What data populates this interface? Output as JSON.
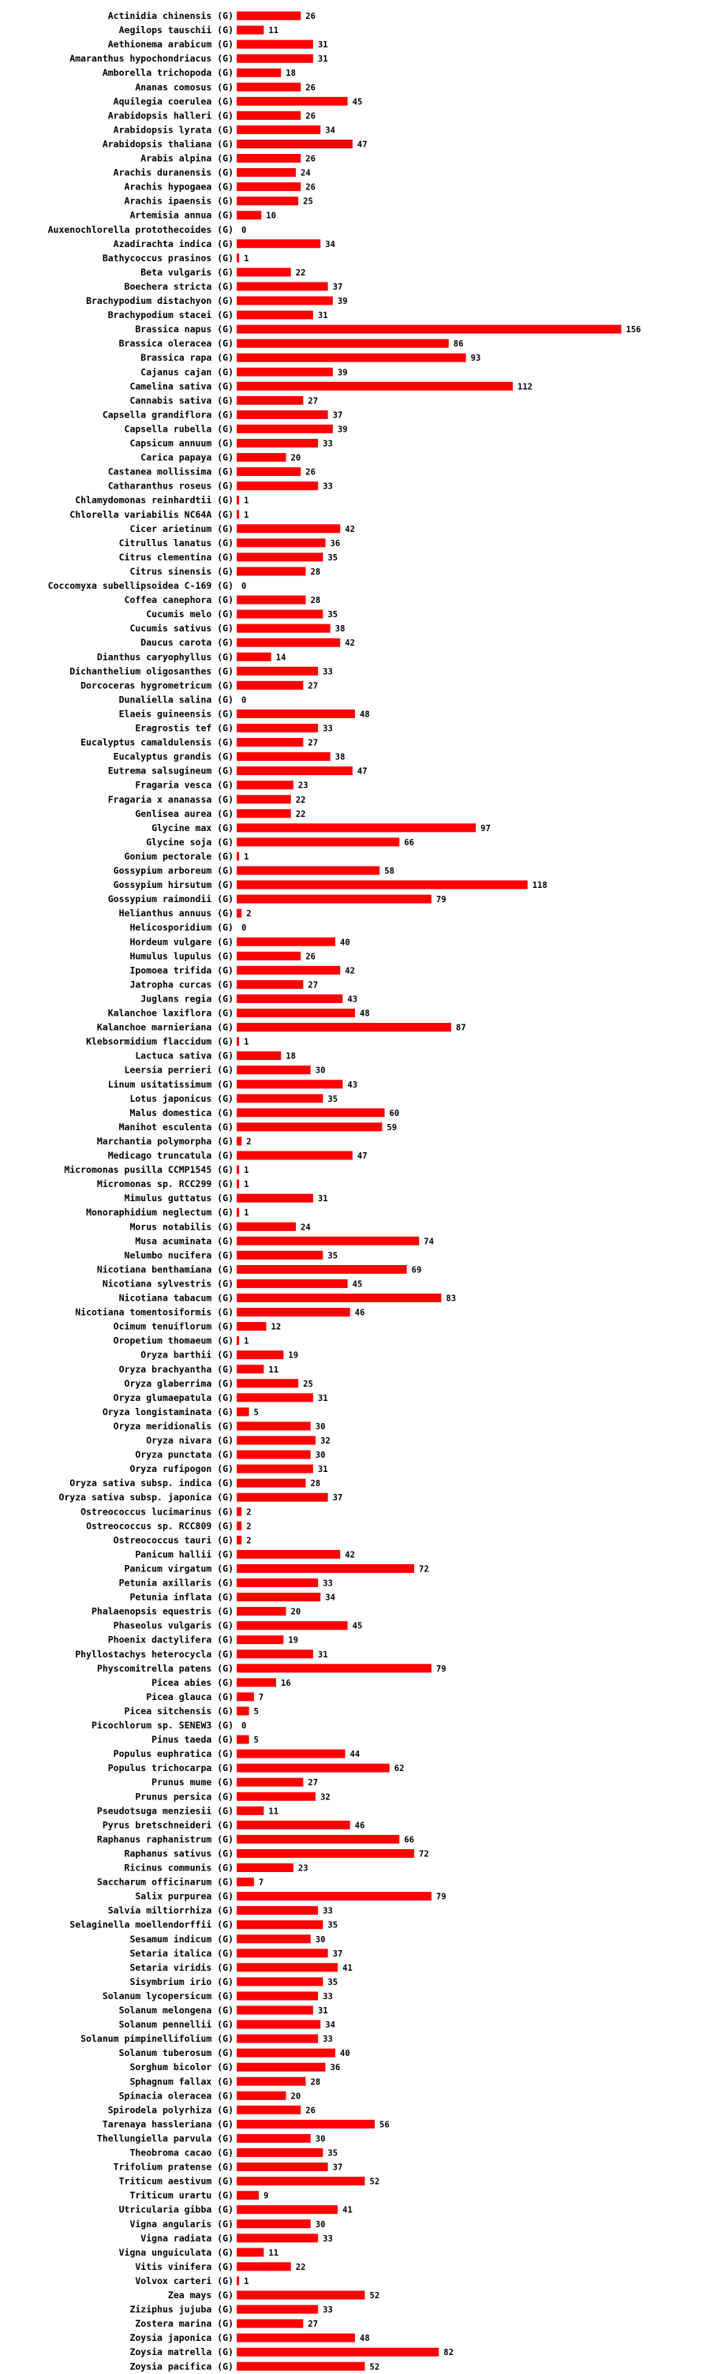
{
  "chart_data": {
    "type": "bar",
    "orientation": "horizontal",
    "bar_color": "#ff0000",
    "categories": [
      "Actinidia chinensis (G)",
      "Aegilops tauschii (G)",
      "Aethionema arabicum (G)",
      "Amaranthus hypochondriacus (G)",
      "Amborella trichopoda (G)",
      "Ananas comosus (G)",
      "Aquilegia coerulea (G)",
      "Arabidopsis halleri (G)",
      "Arabidopsis lyrata (G)",
      "Arabidopsis thaliana (G)",
      "Arabis alpina (G)",
      "Arachis duranensis (G)",
      "Arachis hypogaea (G)",
      "Arachis ipaensis (G)",
      "Artemisia annua (G)",
      "Auxenochlorella protothecoides (G)",
      "Azadirachta indica (G)",
      "Bathycoccus prasinos (G)",
      "Beta vulgaris (G)",
      "Boechera stricta (G)",
      "Brachypodium distachyon (G)",
      "Brachypodium stacei (G)",
      "Brassica napus (G)",
      "Brassica oleracea (G)",
      "Brassica rapa (G)",
      "Cajanus cajan (G)",
      "Camelina sativa (G)",
      "Cannabis sativa (G)",
      "Capsella grandiflora (G)",
      "Capsella rubella (G)",
      "Capsicum annuum (G)",
      "Carica papaya (G)",
      "Castanea mollissima (G)",
      "Catharanthus roseus (G)",
      "Chlamydomonas reinhardtii (G)",
      "Chlorella variabilis NC64A (G)",
      "Cicer arietinum (G)",
      "Citrullus lanatus (G)",
      "Citrus clementina (G)",
      "Citrus sinensis (G)",
      "Coccomyxa subellipsoidea C-169 (G)",
      "Coffea canephora (G)",
      "Cucumis melo (G)",
      "Cucumis sativus (G)",
      "Daucus carota (G)",
      "Dianthus caryophyllus (G)",
      "Dichanthelium oligosanthes (G)",
      "Dorcoceras hygrometricum (G)",
      "Dunaliella salina (G)",
      "Elaeis guineensis (G)",
      "Eragrostis tef (G)",
      "Eucalyptus camaldulensis (G)",
      "Eucalyptus grandis (G)",
      "Eutrema salsugineum (G)",
      "Fragaria vesca (G)",
      "Fragaria x ananassa (G)",
      "Genlisea aurea (G)",
      "Glycine max (G)",
      "Glycine soja (G)",
      "Gonium pectorale (G)",
      "Gossypium arboreum (G)",
      "Gossypium hirsutum (G)",
      "Gossypium raimondii (G)",
      "Helianthus annuus (G)",
      "Helicosporidium (G)",
      "Hordeum vulgare (G)",
      "Humulus lupulus (G)",
      "Ipomoea trifida (G)",
      "Jatropha curcas (G)",
      "Juglans regia (G)",
      "Kalanchoe laxiflora (G)",
      "Kalanchoe marnieriana (G)",
      "Klebsormidium flaccidum (G)",
      "Lactuca sativa (G)",
      "Leersia perrieri (G)",
      "Linum usitatissimum (G)",
      "Lotus japonicus (G)",
      "Malus domestica (G)",
      "Manihot esculenta (G)",
      "Marchantia polymorpha (G)",
      "Medicago truncatula (G)",
      "Micromonas pusilla CCMP1545 (G)",
      "Micromonas sp. RCC299 (G)",
      "Mimulus guttatus (G)",
      "Monoraphidium neglectum (G)",
      "Morus notabilis (G)",
      "Musa acuminata (G)",
      "Nelumbo nucifera (G)",
      "Nicotiana benthamiana (G)",
      "Nicotiana sylvestris (G)",
      "Nicotiana tabacum (G)",
      "Nicotiana tomentosiformis (G)",
      "Ocimum tenuiflorum (G)",
      "Oropetium thomaeum (G)",
      "Oryza barthii (G)",
      "Oryza brachyantha (G)",
      "Oryza glaberrima (G)",
      "Oryza glumaepatula (G)",
      "Oryza longistaminata (G)",
      "Oryza meridionalis (G)",
      "Oryza nivara (G)",
      "Oryza punctata (G)",
      "Oryza rufipogon (G)",
      "Oryza sativa subsp. indica (G)",
      "Oryza sativa subsp. japonica (G)",
      "Ostreococcus lucimarinus (G)",
      "Ostreococcus sp. RCC809 (G)",
      "Ostreococcus tauri (G)",
      "Panicum hallii (G)",
      "Panicum virgatum (G)",
      "Petunia axillaris (G)",
      "Petunia inflata (G)",
      "Phalaenopsis equestris (G)",
      "Phaseolus vulgaris (G)",
      "Phoenix dactylifera (G)",
      "Phyllostachys heterocycla (G)",
      "Physcomitrella patens (G)",
      "Picea abies (G)",
      "Picea glauca (G)",
      "Picea sitchensis (G)",
      "Picochlorum sp. SENEW3 (G)",
      "Pinus taeda (G)",
      "Populus euphratica (G)",
      "Populus trichocarpa (G)",
      "Prunus mume (G)",
      "Prunus persica (G)",
      "Pseudotsuga menziesii (G)",
      "Pyrus bretschneideri (G)",
      "Raphanus raphanistrum (G)",
      "Raphanus sativus (G)",
      "Ricinus communis (G)",
      "Saccharum officinarum (G)",
      "Salix purpurea (G)",
      "Salvia miltiorrhiza (G)",
      "Selaginella moellendorffii (G)",
      "Sesamum indicum (G)",
      "Setaria italica (G)",
      "Setaria viridis (G)",
      "Sisymbrium irio (G)",
      "Solanum lycopersicum (G)",
      "Solanum melongena (G)",
      "Solanum pennellii (G)",
      "Solanum pimpinellifolium (G)",
      "Solanum tuberosum (G)",
      "Sorghum bicolor (G)",
      "Sphagnum fallax (G)",
      "Spinacia oleracea (G)",
      "Spirodela polyrhiza (G)",
      "Tarenaya hassleriana (G)",
      "Thellungiella parvula (G)",
      "Theobroma cacao (G)",
      "Trifolium pratense (G)",
      "Triticum aestivum (G)",
      "Triticum urartu (G)",
      "Utricularia gibba (G)",
      "Vigna angularis (G)",
      "Vigna radiata (G)",
      "Vigna unguiculata (G)",
      "Vitis vinifera (G)",
      "Volvox carteri (G)",
      "Zea mays (G)",
      "Ziziphus jujuba (G)",
      "Zostera marina (G)",
      "Zoysia japonica (G)",
      "Zoysia matrella (G)",
      "Zoysia pacifica (G)"
    ],
    "values": [
      26,
      11,
      31,
      31,
      18,
      26,
      45,
      26,
      34,
      47,
      26,
      24,
      26,
      25,
      10,
      0,
      34,
      1,
      22,
      37,
      39,
      31,
      156,
      86,
      93,
      39,
      112,
      27,
      37,
      39,
      33,
      20,
      26,
      33,
      1,
      1,
      42,
      36,
      35,
      28,
      0,
      28,
      35,
      38,
      42,
      14,
      33,
      27,
      0,
      48,
      33,
      27,
      38,
      47,
      23,
      22,
      22,
      97,
      66,
      1,
      58,
      118,
      79,
      2,
      0,
      40,
      26,
      42,
      27,
      43,
      48,
      87,
      1,
      18,
      30,
      43,
      35,
      60,
      59,
      2,
      47,
      1,
      1,
      31,
      1,
      24,
      74,
      35,
      69,
      45,
      83,
      46,
      12,
      1,
      19,
      11,
      25,
      31,
      5,
      30,
      32,
      30,
      31,
      28,
      37,
      2,
      2,
      2,
      42,
      72,
      33,
      34,
      20,
      45,
      19,
      31,
      79,
      16,
      7,
      5,
      0,
      5,
      44,
      62,
      27,
      32,
      11,
      46,
      66,
      72,
      23,
      7,
      79,
      33,
      35,
      30,
      37,
      41,
      35,
      33,
      31,
      34,
      33,
      40,
      36,
      28,
      20,
      26,
      56,
      30,
      35,
      37,
      52,
      9,
      41,
      30,
      33,
      11,
      22,
      1,
      52,
      33,
      27,
      48,
      82,
      52
    ],
    "title": "",
    "xlabel": "",
    "ylabel": "",
    "xlim": [
      0,
      160
    ],
    "grid": false,
    "legend": "none"
  }
}
